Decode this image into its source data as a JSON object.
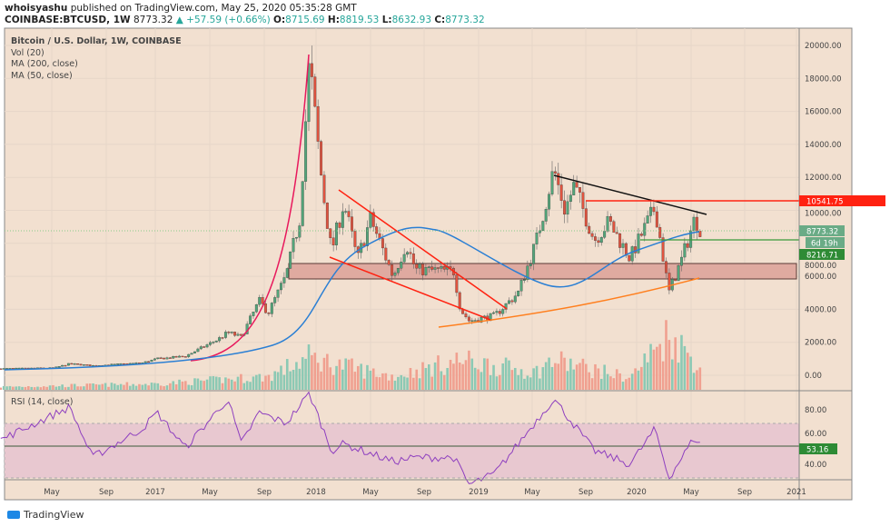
{
  "header": {
    "author": "whoisyashu",
    "published": "published on TradingView.com, May 25, 2020 05:35:28 GMT",
    "symbol": "COINBASE:BTCUSD, 1W",
    "last": "8773.32",
    "change": "+57.59 (+0.66%)",
    "o_label": "O:",
    "o": "8715.69",
    "h_label": "H:",
    "h": "8819.53",
    "l_label": "L:",
    "l": "8632.93",
    "c_label": "C:",
    "c": "8773.32"
  },
  "legend": {
    "title": "Bitcoin / U.S. Dollar, 1W, COINBASE",
    "vol": "Vol (20)",
    "ma200": "MA (200, close)",
    "ma50": "MA (50, close)",
    "rsi": "RSI (14, close)"
  },
  "price_axis": [
    "20000.00",
    "18000.00",
    "16000.00",
    "14000.00",
    "12000.00",
    "10000.00",
    "8000.00",
    "6000.00",
    "4000.00",
    "2000.00",
    "0.00"
  ],
  "rsi_axis": [
    "80.00",
    "60.00",
    "40.00"
  ],
  "time_axis": [
    "May",
    "Sep",
    "2017",
    "May",
    "Sep",
    "2018",
    "May",
    "Sep",
    "2019",
    "May",
    "Sep",
    "2020",
    "May",
    "Sep",
    "2021"
  ],
  "labels": {
    "resistance": "10541.75",
    "last_price": "8773.32",
    "countdown": "6d 19h",
    "support": "8216.71",
    "rsi_value": "53.16"
  },
  "colors": {
    "up": "#53a57a",
    "down": "#e0533f",
    "ma50": "#2a7fd4",
    "ma200": "#ff7f1e",
    "rsi": "#8e3fbf",
    "bg": "#f2e0d0"
  },
  "brand": "TradingView",
  "chart_data": {
    "type": "candlestick",
    "interval": "1W",
    "ylim": [
      0,
      20000
    ],
    "price_path": [
      [
        "2016-01-15",
        400
      ],
      [
        "2016-05-15",
        450
      ],
      [
        "2016-06-20",
        700
      ],
      [
        "2016-08-10",
        580
      ],
      [
        "2016-12-01",
        750
      ],
      [
        "2017-01-05",
        1000
      ],
      [
        "2017-03-10",
        1150
      ],
      [
        "2017-05-25",
        2200
      ],
      [
        "2017-06-15",
        2600
      ],
      [
        "2017-07-15",
        2300
      ],
      [
        "2017-08-25",
        4500
      ],
      [
        "2017-09-15",
        3800
      ],
      [
        "2017-10-25",
        6000
      ],
      [
        "2017-11-25",
        9500
      ],
      [
        "2017-12-17",
        19000
      ],
      [
        "2018-01-15",
        11500
      ],
      [
        "2018-02-05",
        7500
      ],
      [
        "2018-03-05",
        10500
      ],
      [
        "2018-04-05",
        7000
      ],
      [
        "2018-05-05",
        9500
      ],
      [
        "2018-06-25",
        6000
      ],
      [
        "2018-07-25",
        8000
      ],
      [
        "2018-08-15",
        6400
      ],
      [
        "2018-11-10",
        6300
      ],
      [
        "2018-11-25",
        4000
      ],
      [
        "2018-12-15",
        3300
      ],
      [
        "2019-02-10",
        3600
      ],
      [
        "2019-04-05",
        5000
      ],
      [
        "2019-05-15",
        8000
      ],
      [
        "2019-06-25",
        12500
      ],
      [
        "2019-07-20",
        10000
      ],
      [
        "2019-08-10",
        11500
      ],
      [
        "2019-09-25",
        8200
      ],
      [
        "2019-10-28",
        9300
      ],
      [
        "2019-12-15",
        7100
      ],
      [
        "2020-02-10",
        10200
      ],
      [
        "2020-03-12",
        5000
      ],
      [
        "2020-04-10",
        7000
      ],
      [
        "2020-05-10",
        9500
      ],
      [
        "2020-05-25",
        8773
      ]
    ],
    "volume_path": [
      [
        "2016-01-15",
        200
      ],
      [
        "2017-01-05",
        400
      ],
      [
        "2017-09-15",
        900
      ],
      [
        "2017-12-17",
        2200
      ],
      [
        "2018-02-05",
        1800
      ],
      [
        "2018-06-25",
        900
      ],
      [
        "2018-11-25",
        2000
      ],
      [
        "2019-05-15",
        1200
      ],
      [
        "2019-06-25",
        2000
      ],
      [
        "2019-12-15",
        800
      ],
      [
        "2020-03-12",
        3800
      ],
      [
        "2020-05-25",
        1500
      ]
    ],
    "rsi_path": [
      [
        "2016-01-15",
        58
      ],
      [
        "2016-06-20",
        82
      ],
      [
        "2016-08-10",
        45
      ],
      [
        "2016-12-01",
        66
      ],
      [
        "2017-01-05",
        78
      ],
      [
        "2017-03-10",
        52
      ],
      [
        "2017-06-15",
        88
      ],
      [
        "2017-07-15",
        55
      ],
      [
        "2017-08-25",
        78
      ],
      [
        "2017-10-25",
        70
      ],
      [
        "2017-12-17",
        92
      ],
      [
        "2018-02-05",
        50
      ],
      [
        "2018-03-05",
        55
      ],
      [
        "2018-06-25",
        42
      ],
      [
        "2018-08-15",
        45
      ],
      [
        "2018-11-10",
        45
      ],
      [
        "2018-12-15",
        25
      ],
      [
        "2019-02-10",
        33
      ],
      [
        "2019-04-05",
        55
      ],
      [
        "2019-06-25",
        88
      ],
      [
        "2019-09-25",
        50
      ],
      [
        "2019-12-15",
        40
      ],
      [
        "2020-02-10",
        66
      ],
      [
        "2020-03-12",
        30
      ],
      [
        "2020-05-10",
        60
      ],
      [
        "2020-05-25",
        53
      ]
    ]
  }
}
